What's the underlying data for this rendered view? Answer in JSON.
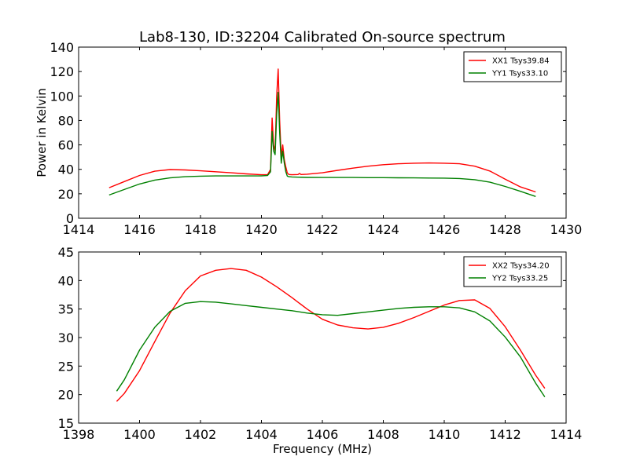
{
  "chart_data": [
    {
      "type": "line",
      "title": "Lab8-130, ID:32204 Calibrated On-source spectrum",
      "xlabel": "",
      "ylabel": "Power in Kelvin",
      "xlim": [
        1414,
        1430
      ],
      "ylim": [
        0,
        140
      ],
      "xticks": [
        1414,
        1416,
        1418,
        1420,
        1422,
        1424,
        1426,
        1428,
        1430
      ],
      "yticks": [
        0,
        20,
        40,
        60,
        80,
        100,
        120,
        140
      ],
      "grid": false,
      "legend_position": "top-right",
      "series": [
        {
          "name": "XX1 Tsys39.84",
          "color": "#ff0000",
          "x": [
            1415.0,
            1415.5,
            1416.0,
            1416.5,
            1417.0,
            1417.5,
            1418.0,
            1418.5,
            1419.0,
            1419.5,
            1420.0,
            1420.2,
            1420.3,
            1420.35,
            1420.4,
            1420.45,
            1420.5,
            1420.55,
            1420.6,
            1420.65,
            1420.7,
            1420.75,
            1420.8,
            1420.85,
            1420.9,
            1421.0,
            1421.2,
            1421.25,
            1421.3,
            1421.5,
            1422.0,
            1422.5,
            1423.0,
            1423.5,
            1424.0,
            1424.5,
            1425.0,
            1425.5,
            1426.0,
            1426.5,
            1427.0,
            1427.5,
            1428.0,
            1428.5,
            1429.0
          ],
          "y": [
            25,
            30,
            35,
            38.5,
            39.8,
            39.5,
            38.8,
            38,
            37.2,
            36.3,
            35.6,
            35.6,
            40,
            82,
            60,
            55,
            100,
            122,
            80,
            50,
            60,
            48,
            42,
            37,
            35.8,
            35.6,
            35.8,
            36.6,
            35.8,
            36,
            37.2,
            39.2,
            41,
            42.6,
            43.8,
            44.6,
            45,
            45.2,
            45,
            44.6,
            42.6,
            38.6,
            32,
            25.6,
            21.5
          ]
        },
        {
          "name": "YY1 Tsys33.10",
          "color": "#008000",
          "x": [
            1415.0,
            1415.5,
            1416.0,
            1416.5,
            1417.0,
            1417.5,
            1418.0,
            1418.5,
            1419.0,
            1419.5,
            1420.0,
            1420.2,
            1420.3,
            1420.35,
            1420.4,
            1420.45,
            1420.5,
            1420.55,
            1420.6,
            1420.65,
            1420.7,
            1420.75,
            1420.8,
            1420.85,
            1420.9,
            1421.0,
            1421.2,
            1421.5,
            1422.0,
            1422.5,
            1423.0,
            1423.5,
            1424.0,
            1424.5,
            1425.0,
            1425.5,
            1426.0,
            1426.5,
            1427.0,
            1427.5,
            1428.0,
            1428.5,
            1429.0
          ],
          "y": [
            19,
            23.5,
            28,
            31.2,
            33,
            34,
            34.4,
            34.6,
            34.6,
            34.6,
            34.6,
            35,
            38,
            71,
            55,
            52,
            85,
            103,
            70,
            45,
            55,
            45,
            38,
            34.5,
            34,
            33.8,
            33.6,
            33.4,
            33.3,
            33.3,
            33.3,
            33.2,
            33.2,
            33.1,
            33.0,
            32.9,
            32.8,
            32.5,
            31.5,
            29.5,
            26,
            22,
            17.8
          ]
        }
      ]
    },
    {
      "type": "line",
      "title": "",
      "xlabel": "Frequency (MHz)",
      "ylabel": "",
      "xlim": [
        1398,
        1414
      ],
      "ylim": [
        15,
        45
      ],
      "xticks": [
        1398,
        1400,
        1402,
        1404,
        1406,
        1408,
        1410,
        1412,
        1414
      ],
      "yticks": [
        15,
        20,
        25,
        30,
        35,
        40,
        45
      ],
      "grid": false,
      "legend_position": "top-right",
      "series": [
        {
          "name": "XX2 Tsys34.20",
          "color": "#ff0000",
          "x": [
            1399.25,
            1399.5,
            1400.0,
            1400.5,
            1401.0,
            1401.5,
            1402.0,
            1402.5,
            1403.0,
            1403.5,
            1404.0,
            1404.5,
            1405.0,
            1405.5,
            1406.0,
            1406.5,
            1407.0,
            1407.5,
            1408.0,
            1408.5,
            1409.0,
            1409.5,
            1410.0,
            1410.5,
            1411.0,
            1411.5,
            1412.0,
            1412.5,
            1413.0,
            1413.3
          ],
          "y": [
            18.8,
            20.2,
            24.2,
            29.3,
            34.3,
            38.2,
            40.8,
            41.8,
            42.1,
            41.8,
            40.6,
            38.9,
            37,
            35,
            33.2,
            32.2,
            31.7,
            31.5,
            31.8,
            32.5,
            33.5,
            34.6,
            35.7,
            36.5,
            36.6,
            35.1,
            31.9,
            27.8,
            23.4,
            21.1
          ]
        },
        {
          "name": "YY2 Tsys33.25",
          "color": "#008000",
          "x": [
            1399.25,
            1399.5,
            1400.0,
            1400.5,
            1401.0,
            1401.5,
            1402.0,
            1402.5,
            1403.0,
            1403.5,
            1404.0,
            1404.5,
            1405.0,
            1405.5,
            1406.0,
            1406.5,
            1407.0,
            1407.5,
            1408.0,
            1408.5,
            1409.0,
            1409.5,
            1410.0,
            1410.5,
            1411.0,
            1411.5,
            1412.0,
            1412.5,
            1413.0,
            1413.3
          ],
          "y": [
            20.6,
            22.6,
            27.8,
            31.8,
            34.6,
            36,
            36.3,
            36.2,
            35.9,
            35.6,
            35.3,
            35,
            34.7,
            34.3,
            34,
            33.9,
            34.2,
            34.5,
            34.8,
            35.1,
            35.3,
            35.4,
            35.4,
            35.2,
            34.5,
            32.9,
            30.1,
            26.6,
            22,
            19.6
          ]
        }
      ]
    }
  ]
}
